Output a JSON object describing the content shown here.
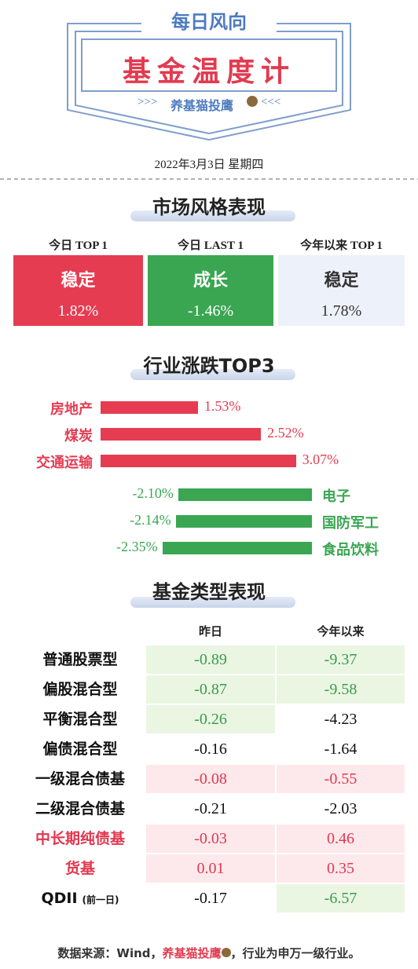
{
  "header": {
    "tag": "每日风向",
    "title": "基金温度计",
    "brand": "养基猫投鹰",
    "date": "2022年3月3日 星期四"
  },
  "market_style": {
    "title": "市场风格表现",
    "cards": [
      {
        "label": "今日 TOP 1",
        "name": "稳定",
        "value": "1.82%"
      },
      {
        "label": "今日 LAST 1",
        "name": "成长",
        "value": "-1.46%"
      },
      {
        "label": "今年以来 TOP 1",
        "name": "稳定",
        "value": "1.78%"
      }
    ]
  },
  "industry": {
    "title": "行业涨跌TOP3",
    "gainers": [
      {
        "name": "房地产",
        "value": 1.53,
        "value_label": "1.53%"
      },
      {
        "name": "煤炭",
        "value": 2.52,
        "value_label": "2.52%"
      },
      {
        "name": "交通运输",
        "value": 3.07,
        "value_label": "3.07%"
      }
    ],
    "losers": [
      {
        "name": "电子",
        "value": -2.1,
        "value_label": "-2.10%"
      },
      {
        "name": "国防军工",
        "value": -2.14,
        "value_label": "-2.14%"
      },
      {
        "name": "食品饮料",
        "value": -2.35,
        "value_label": "-2.35%"
      }
    ]
  },
  "fund_types": {
    "title": "基金类型表现",
    "columns": [
      "昨日",
      "今年以来"
    ],
    "rows": [
      {
        "name": "普通股票型",
        "values": [
          "-0.89",
          "-9.37"
        ]
      },
      {
        "name": "偏股混合型",
        "values": [
          "-0.87",
          "-9.58"
        ]
      },
      {
        "name": "平衡混合型",
        "values": [
          "-0.26",
          "-4.23"
        ]
      },
      {
        "name": "偏债混合型",
        "values": [
          "-0.16",
          "-1.64"
        ]
      },
      {
        "name": "一级混合债基",
        "values": [
          "-0.08",
          "-0.55"
        ]
      },
      {
        "name": "二级混合债基",
        "values": [
          "-0.21",
          "-2.03"
        ]
      },
      {
        "name": "中长期纯债基",
        "values": [
          "-0.03",
          "0.46"
        ]
      },
      {
        "name": "货基",
        "values": [
          "0.01",
          "0.35"
        ]
      },
      {
        "name": "QDII",
        "note": "(前一日)",
        "values": [
          "-0.17",
          "-6.57"
        ]
      }
    ]
  },
  "footer": {
    "source": "数据来源：Wind，",
    "brand": "养基猫投鹰",
    "note": "，行业为申万一级行业。"
  }
}
